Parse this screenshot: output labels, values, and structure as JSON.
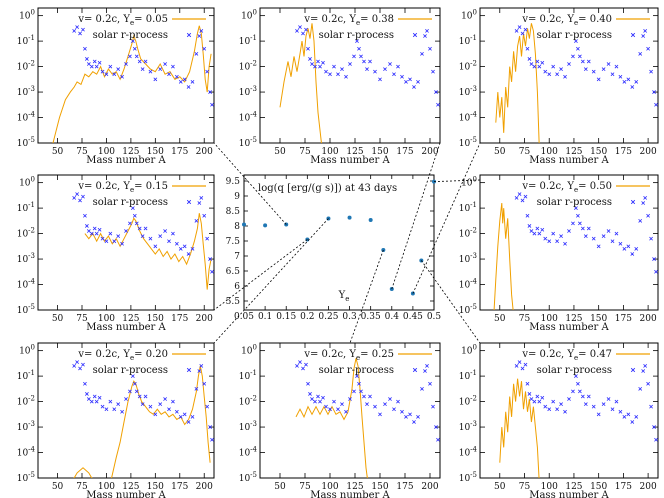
{
  "colors": {
    "model": "#f0a000",
    "solar": "#2b2bff",
    "center_points": "#1f77b4",
    "frame": "#000000"
  },
  "legend": {
    "model_prefix": "v= 0.2c, Y",
    "model_sub": "e",
    "solar_label": "solar r-process"
  },
  "axis_label_x": "Mass number A",
  "center": {
    "title": "log(q [erg/(g s)]) at 43 days",
    "xlabel_main": "Y",
    "xlabel_sub": "e"
  },
  "chart_data": [
    {
      "type": "line",
      "panel": "Ye=0.05",
      "ye_label": "= 0.05",
      "xlim": [
        30,
        210
      ],
      "ylim_log10": [
        -5,
        0.3
      ],
      "x_ticks": [
        50,
        75,
        100,
        125,
        150,
        175,
        200
      ],
      "y_ticks": [
        "10^0",
        "10^-1",
        "10^-2",
        "10^-3",
        "10^-4",
        "10^-5"
      ]
    },
    {
      "type": "line",
      "panel": "Ye=0.38",
      "ye_label": "= 0.38",
      "xlim": [
        30,
        210
      ],
      "ylim_log10": [
        -5,
        0.3
      ]
    },
    {
      "type": "line",
      "panel": "Ye=0.40",
      "ye_label": "= 0.40",
      "xlim": [
        30,
        210
      ],
      "ylim_log10": [
        -5,
        0.3
      ]
    },
    {
      "type": "line",
      "panel": "Ye=0.15",
      "ye_label": "= 0.15",
      "xlim": [
        30,
        210
      ],
      "ylim_log10": [
        -5,
        0.3
      ]
    },
    {
      "type": "line",
      "panel": "Ye=0.50",
      "ye_label": "= 0.50",
      "xlim": [
        30,
        210
      ],
      "ylim_log10": [
        -5,
        0.3
      ]
    },
    {
      "type": "line",
      "panel": "Ye=0.20",
      "ye_label": "= 0.20",
      "xlim": [
        30,
        210
      ],
      "ylim_log10": [
        -5,
        0.3
      ]
    },
    {
      "type": "line",
      "panel": "Ye=0.25",
      "ye_label": "= 0.25",
      "xlim": [
        30,
        210
      ],
      "ylim_log10": [
        -5,
        0.3
      ]
    },
    {
      "type": "line",
      "panel": "Ye=0.47",
      "ye_label": "= 0.47",
      "xlim": [
        30,
        210
      ],
      "ylim_log10": [
        -5,
        0.3
      ]
    },
    {
      "type": "scatter",
      "panel": "center",
      "title": "log(q [erg/(g s)]) at 43 days",
      "xlabel": "Ye",
      "xlim": [
        0.05,
        0.5
      ],
      "ylim": [
        5.2,
        9.7
      ],
      "x_ticks": [
        0.05,
        0.1,
        0.15,
        0.2,
        0.25,
        0.3,
        0.35,
        0.4,
        0.45,
        0.5
      ],
      "y_ticks": [
        5.5,
        6,
        6.5,
        7,
        7.5,
        8,
        8.5,
        9,
        9.5
      ],
      "x": [
        0.05,
        0.1,
        0.15,
        0.2,
        0.25,
        0.3,
        0.35,
        0.38,
        0.4,
        0.45,
        0.47,
        0.5
      ],
      "y": [
        8.05,
        8.02,
        8.05,
        7.55,
        8.25,
        8.28,
        8.2,
        7.2,
        5.9,
        5.75,
        6.85,
        9.48
      ]
    }
  ],
  "solar_curve": {
    "A": [
      67,
      70,
      73,
      76,
      78,
      80,
      82,
      85,
      88,
      90,
      93,
      96,
      100,
      104,
      108,
      112,
      116,
      120,
      124,
      127,
      129,
      131,
      134,
      137,
      140,
      145,
      150,
      155,
      160,
      164,
      168,
      172,
      176,
      180,
      184,
      188,
      192,
      195,
      197,
      200,
      203,
      206,
      208
    ],
    "logY": [
      -0.6,
      -0.45,
      -0.7,
      -0.55,
      -1.3,
      -1.7,
      -1.9,
      -2.0,
      -1.8,
      -2.0,
      -1.85,
      -2.2,
      -2.3,
      -2.0,
      -2.3,
      -2.1,
      -2.4,
      -1.9,
      -1.6,
      -1.0,
      -1.3,
      -1.6,
      -1.8,
      -2.1,
      -1.8,
      -2.2,
      -2.5,
      -2.1,
      -1.9,
      -2.3,
      -2.0,
      -2.4,
      -2.6,
      -2.5,
      -2.8,
      -2.6,
      -1.5,
      -0.8,
      -0.6,
      -1.3,
      -2.2,
      -3.0,
      -3.5
    ]
  }
}
